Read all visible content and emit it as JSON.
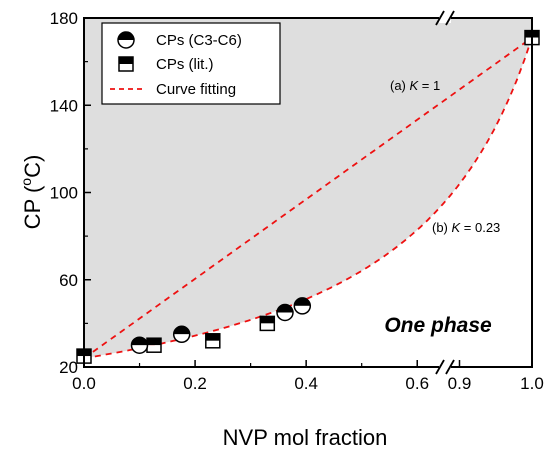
{
  "chart_data": {
    "type": "scatter",
    "xlabel": "NVP mol fraction",
    "ylabel_main": "CP (",
    "ylabel_sup": "o",
    "ylabel_end": "C)",
    "x_break": [
      0.65,
      0.88
    ],
    "x_ticks": [
      {
        "value": 0.0,
        "label": "0.0"
      },
      {
        "value": 0.2,
        "label": "0.2"
      },
      {
        "value": 0.4,
        "label": "0.4"
      },
      {
        "value": 0.6,
        "label": "0.6"
      },
      {
        "value": 0.9,
        "label": "0.9"
      },
      {
        "value": 1.0,
        "label": "1.0"
      }
    ],
    "y_ticks": [
      {
        "value": 20,
        "label": "20"
      },
      {
        "value": 60,
        "label": "60"
      },
      {
        "value": 100,
        "label": "100"
      },
      {
        "value": 140,
        "label": "140"
      },
      {
        "value": 180,
        "label": "180"
      }
    ],
    "ylim": [
      20,
      180
    ],
    "series": [
      {
        "name": "CPs (C3-C6)",
        "marker": "circle-top-half-filled",
        "points": [
          [
            0.1,
            30
          ],
          [
            0.176,
            35
          ],
          [
            0.362,
            45
          ],
          [
            0.393,
            48
          ]
        ]
      },
      {
        "name": "CPs (lit.)",
        "marker": "square-top-half-filled",
        "points": [
          [
            0.0,
            25
          ],
          [
            0.126,
            30
          ],
          [
            0.232,
            32
          ],
          [
            0.33,
            40
          ],
          [
            1.0,
            171
          ]
        ]
      }
    ],
    "fits": [
      {
        "name": "Curve fitting",
        "K": 1,
        "annotation_prefix": "(a) ",
        "annotation_k": "K",
        "annotation_value": " = 1"
      },
      {
        "name": "Curve fitting",
        "K": 0.23,
        "annotation_prefix": "(b) ",
        "annotation_k": "K",
        "annotation_value": " = 0.23"
      }
    ],
    "fit_endpoints": {
      "y0": 24,
      "y1": 171
    },
    "region_label": "One phase",
    "legend": {
      "placement": "top-left",
      "entries": [
        "CPs (C3-C6)",
        "CPs (lit.)",
        "Curve fitting"
      ]
    },
    "colors": {
      "fit": "#ee1111",
      "region": "#dedede",
      "marker": "#000000"
    }
  }
}
